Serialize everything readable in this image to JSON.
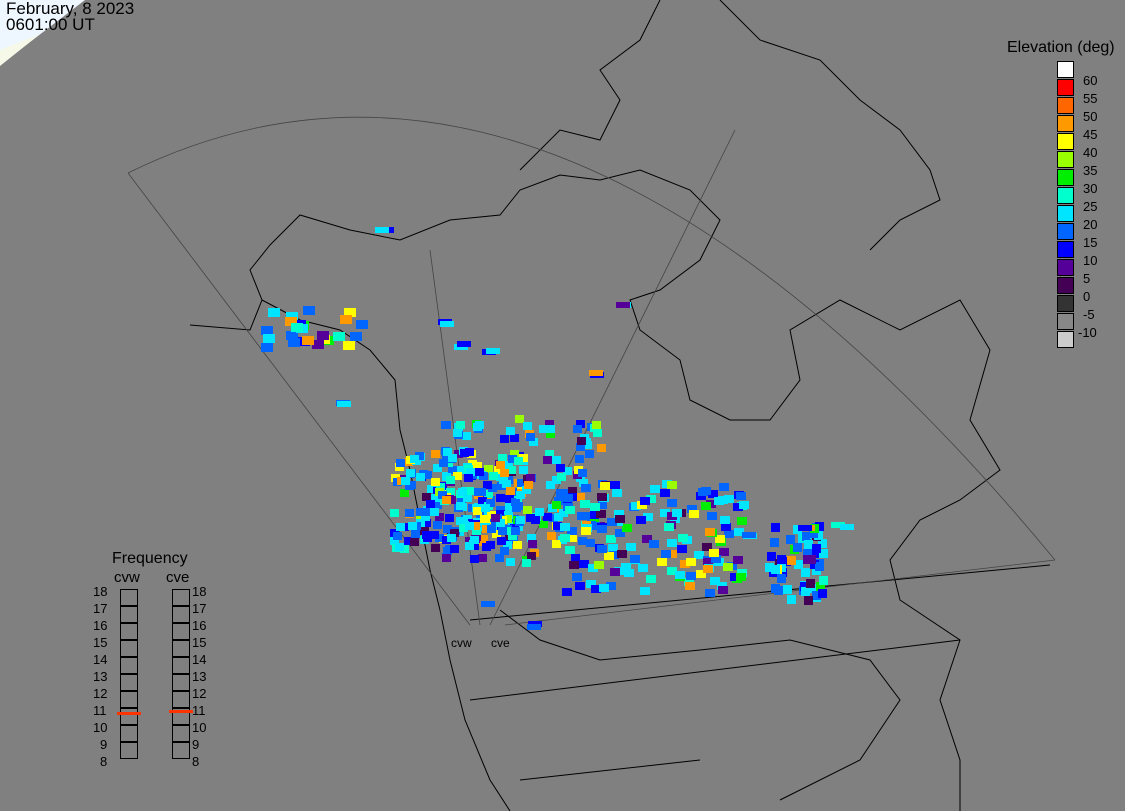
{
  "header": {
    "date": "February, 8 2023",
    "time": "0601:00 UT"
  },
  "elevation_legend": {
    "title": "Elevation (deg)",
    "labels": [
      "60",
      "55",
      "50",
      "45",
      "40",
      "35",
      "30",
      "25",
      "20",
      "15",
      "10",
      "5",
      "0",
      "-5",
      "-10"
    ],
    "colors": [
      "#ffffff",
      "#ff0000",
      "#ff6600",
      "#ff9900",
      "#ffff00",
      "#99ff00",
      "#00ee00",
      "#00ffcc",
      "#00e5ff",
      "#0066ff",
      "#0000ff",
      "#550099",
      "#440055",
      "#333333",
      "#888888",
      "#cccccc"
    ]
  },
  "frequency_panel": {
    "title": "Frequency",
    "scale": [
      "18",
      "17",
      "16",
      "15",
      "14",
      "13",
      "12",
      "11",
      "10",
      "9",
      "8"
    ],
    "radars": [
      {
        "name": "cvw",
        "frequency_mhz": 10.7
      },
      {
        "name": "cve",
        "frequency_mhz": 10.8
      }
    ],
    "marker_color": "#ff3300"
  },
  "map": {
    "site_labels": [
      "cvw",
      "cve"
    ],
    "background": "#808080",
    "daylight_color": "#eef6ff"
  }
}
